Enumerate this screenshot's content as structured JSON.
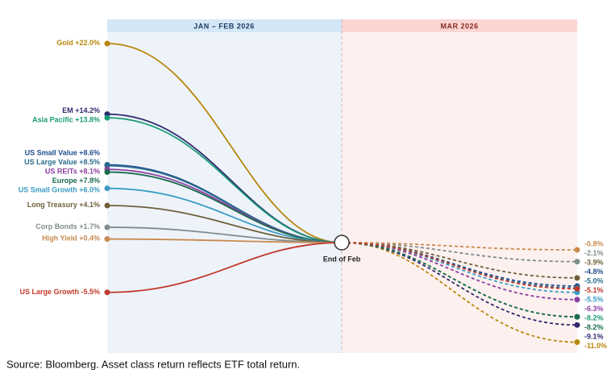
{
  "chart_data": {
    "type": "convergence",
    "periods": [
      "JAN – FEB 2026",
      "MAR 2026"
    ],
    "annotation": "End of Feb",
    "source": "Source: Bloomberg. Asset class return reflects ETF total return.",
    "ylim": [
      -12.2,
      23.25
    ],
    "series": [
      {
        "name": "Gold",
        "color": "#b8860b",
        "values": [
          22.0,
          -11.0
        ],
        "value_labels": [
          "+22.0%",
          "-11.0%"
        ]
      },
      {
        "name": "EM",
        "color": "#2e2a6e",
        "values": [
          14.2,
          -9.1
        ],
        "value_labels": [
          "+14.2%",
          "-9.1%"
        ]
      },
      {
        "name": "Asia Pacific",
        "color": "#1a9a78",
        "values": [
          13.8,
          -8.2
        ],
        "value_labels": [
          "+13.8%",
          "-8.2%"
        ]
      },
      {
        "name": "US Small Value",
        "color": "#1f4e8c",
        "values": [
          8.6,
          -4.8
        ],
        "value_labels": [
          "+8.6%",
          "-4.8%"
        ]
      },
      {
        "name": "US Large Value",
        "color": "#2a6c8f",
        "values": [
          8.5,
          -5.0
        ],
        "value_labels": [
          "+8.5%",
          "-5.0%"
        ]
      },
      {
        "name": "US REITs",
        "color": "#8b3fa0",
        "values": [
          8.1,
          -6.3
        ],
        "value_labels": [
          "+8.1%",
          "-6.3%"
        ]
      },
      {
        "name": "Europe",
        "color": "#1b6b4a",
        "values": [
          7.8,
          -8.2
        ],
        "value_labels": [
          "+7.8%",
          "-8.2%"
        ]
      },
      {
        "name": "US Small Growth",
        "color": "#3b9cc4",
        "values": [
          6.0,
          -5.5
        ],
        "value_labels": [
          "+6.0%",
          "-5.5%"
        ]
      },
      {
        "name": "Long Treasury",
        "color": "#6e5f3a",
        "values": [
          4.1,
          -3.9
        ],
        "value_labels": [
          "+4.1%",
          "-3.9%"
        ]
      },
      {
        "name": "Corp Bonds",
        "color": "#7f8c8d",
        "values": [
          1.7,
          -2.1
        ],
        "value_labels": [
          "+1.7%",
          "-2.1%"
        ]
      },
      {
        "name": "High Yield",
        "color": "#c8894f",
        "values": [
          0.4,
          -0.8
        ],
        "value_labels": [
          "+0.4%",
          "-0.8%"
        ]
      },
      {
        "name": "US Large Growth",
        "color": "#c0392b",
        "values": [
          -5.5,
          -5.1
        ],
        "value_labels": [
          "-5.5%",
          "-5.1%"
        ]
      }
    ]
  }
}
